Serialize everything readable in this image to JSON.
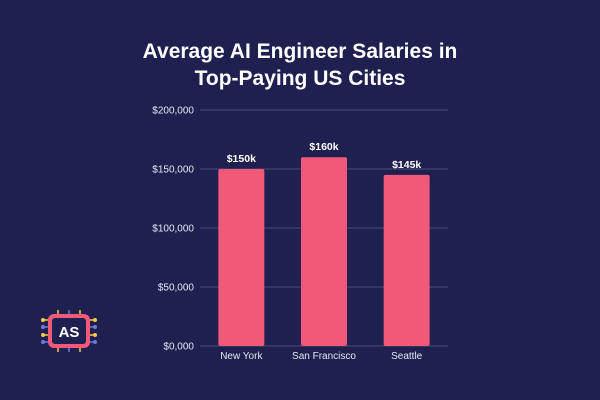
{
  "chart_data": {
    "type": "bar",
    "title_lines": [
      "Average AI Engineer Salaries in",
      "Top-Paying US Cities"
    ],
    "xlabel": "",
    "ylabel": "",
    "categories": [
      "New York",
      "San Francisco",
      "Seattle"
    ],
    "values": [
      150000,
      160000,
      145000
    ],
    "data_labels": [
      "$150k",
      "$160k",
      "$145k"
    ],
    "ylim": [
      0,
      200000
    ],
    "y_ticks": [
      0,
      50000,
      100000,
      150000,
      200000
    ],
    "y_tick_labels": [
      "$0,000",
      "$50,000",
      "$100,000",
      "$150,000",
      "$200,000"
    ],
    "grid": true,
    "legend": "none",
    "bar_color": "#ee5a78",
    "background_color": "#1f2050"
  },
  "logo": {
    "text": "AS",
    "frame_color": "#ee5a78",
    "pin_colors": [
      "#f7c948",
      "#6c7bd8"
    ]
  }
}
